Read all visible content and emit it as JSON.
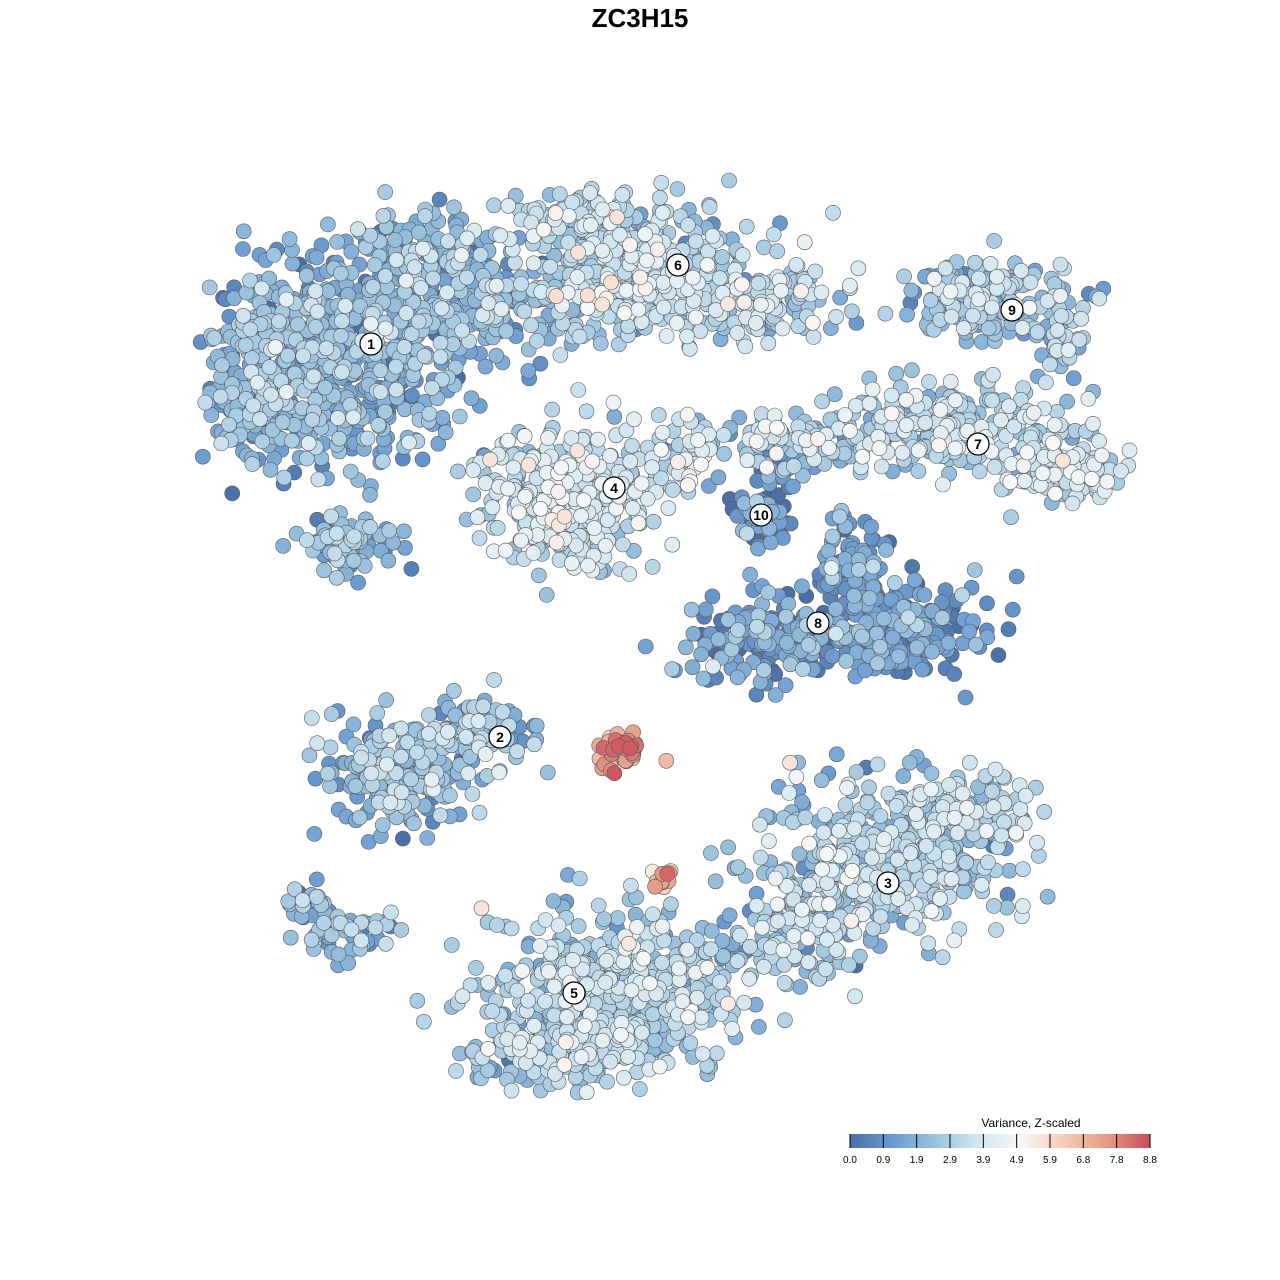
{
  "chart_data": {
    "type": "scatter",
    "title": "ZC3H15",
    "xlabel": "",
    "ylabel": "",
    "grid": false,
    "legend": {
      "title": "Variance, Z-scaled",
      "placement": "bottom-right",
      "ticks": [
        "0.0",
        "0.9",
        "1.9",
        "2.9",
        "3.9",
        "4.9",
        "5.9",
        "6.8",
        "7.8",
        "8.8"
      ],
      "range": [
        0.0,
        8.8
      ],
      "colors": [
        "#4a6fa5",
        "#6b9bd0",
        "#9cc3de",
        "#d2e6f0",
        "#f7f7f7",
        "#f5cbb5",
        "#e59a86",
        "#c94a5a"
      ]
    },
    "clusters": [
      {
        "label": "1",
        "level": 2.0
      },
      {
        "label": "2",
        "level": 2.2
      },
      {
        "label": "3",
        "level": 2.8
      },
      {
        "label": "4",
        "level": 3.4
      },
      {
        "label": "5",
        "level": 2.9
      },
      {
        "label": "6",
        "level": 3.0
      },
      {
        "label": "7",
        "level": 3.1
      },
      {
        "label": "8",
        "level": 1.2
      },
      {
        "label": "9",
        "level": 2.6
      },
      {
        "label": "10",
        "level": 0.9
      }
    ],
    "hotspots": [
      {
        "level": 8.6
      },
      {
        "level": 8.4
      },
      {
        "level": 5.8
      }
    ]
  }
}
